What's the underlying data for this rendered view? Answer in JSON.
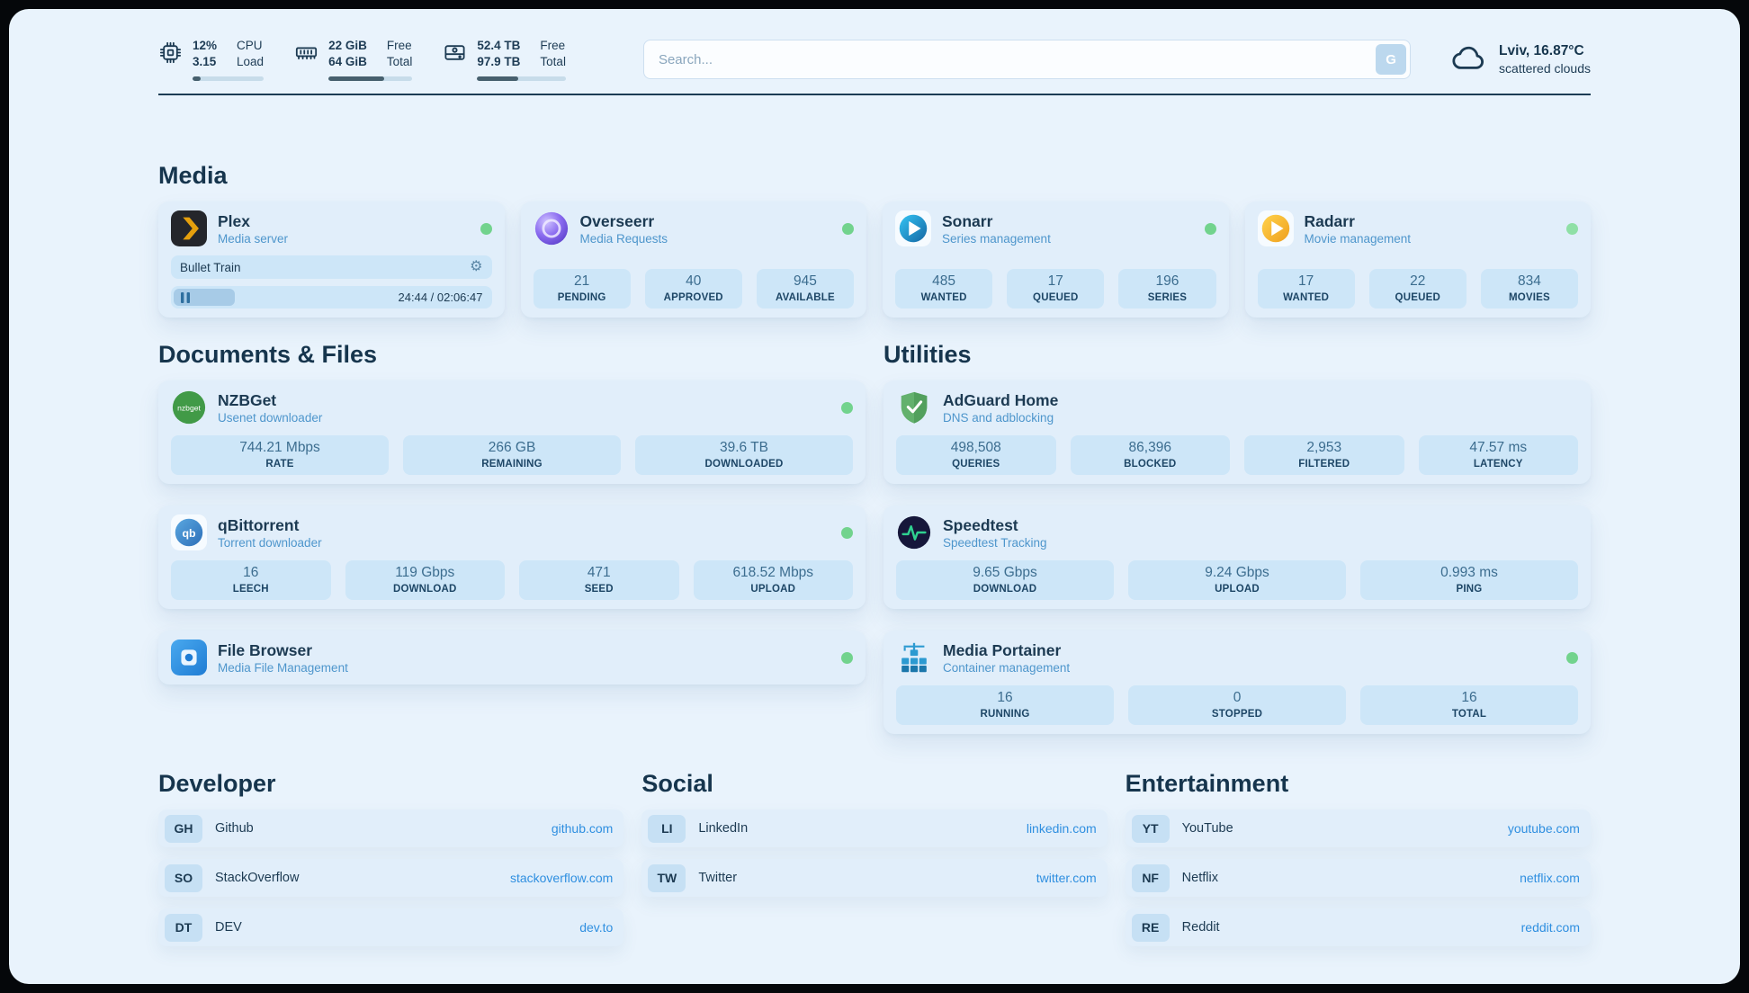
{
  "topbar": {
    "cpu": {
      "value1": "12%",
      "value2": "3.15",
      "label1": "CPU",
      "label2": "Load",
      "percent": 12
    },
    "ram": {
      "value1": "22 GiB",
      "value2": "64 GiB",
      "label1": "Free",
      "label2": "Total",
      "percent": 66
    },
    "disk": {
      "value1": "52.4 TB",
      "value2": "97.9 TB",
      "label1": "Free",
      "label2": "Total",
      "percent": 46
    },
    "search": {
      "placeholder": "Search...",
      "button_label": "G"
    },
    "weather": {
      "location": "Lviv, 16.87°C",
      "condition": "scattered clouds"
    }
  },
  "icons": {
    "gear": "⚙︎"
  },
  "media": {
    "title": "Media",
    "plex": {
      "name": "Plex",
      "subtitle": "Media server",
      "now_playing": "Bullet Train",
      "time": "24:44 / 02:06:47",
      "progress_percent": 19
    },
    "overseerr": {
      "name": "Overseerr",
      "subtitle": "Media Requests",
      "stats": [
        {
          "value": "21",
          "label": "PENDING"
        },
        {
          "value": "40",
          "label": "APPROVED"
        },
        {
          "value": "945",
          "label": "AVAILABLE"
        }
      ]
    },
    "sonarr": {
      "name": "Sonarr",
      "subtitle": "Series management",
      "stats": [
        {
          "value": "485",
          "label": "WANTED"
        },
        {
          "value": "17",
          "label": "QUEUED"
        },
        {
          "value": "196",
          "label": "SERIES"
        }
      ]
    },
    "radarr": {
      "name": "Radarr",
      "subtitle": "Movie management",
      "stats": [
        {
          "value": "17",
          "label": "WANTED"
        },
        {
          "value": "22",
          "label": "QUEUED"
        },
        {
          "value": "834",
          "label": "MOVIES"
        }
      ]
    }
  },
  "documents": {
    "title": "Documents & Files",
    "nzbget": {
      "name": "NZBGet",
      "subtitle": "Usenet downloader",
      "icon_label": "nzbget",
      "stats": [
        {
          "value": "744.21 Mbps",
          "label": "RATE"
        },
        {
          "value": "266 GB",
          "label": "REMAINING"
        },
        {
          "value": "39.6 TB",
          "label": "DOWNLOADED"
        }
      ]
    },
    "qbittorrent": {
      "name": "qBittorrent",
      "subtitle": "Torrent downloader",
      "icon_label": "qb",
      "stats": [
        {
          "value": "16",
          "label": "LEECH"
        },
        {
          "value": "119 Gbps",
          "label": "DOWNLOAD"
        },
        {
          "value": "471",
          "label": "SEED"
        },
        {
          "value": "618.52 Mbps",
          "label": "UPLOAD"
        }
      ]
    },
    "filebrowser": {
      "name": "File Browser",
      "subtitle": "Media File Management"
    }
  },
  "utilities": {
    "title": "Utilities",
    "adguard": {
      "name": "AdGuard Home",
      "subtitle": "DNS and adblocking",
      "stats": [
        {
          "value": "498,508",
          "label": "QUERIES"
        },
        {
          "value": "86,396",
          "label": "BLOCKED"
        },
        {
          "value": "2,953",
          "label": "FILTERED"
        },
        {
          "value": "47.57 ms",
          "label": "LATENCY"
        }
      ]
    },
    "speedtest": {
      "name": "Speedtest",
      "subtitle": "Speedtest Tracking",
      "stats": [
        {
          "value": "9.65 Gbps",
          "label": "DOWNLOAD"
        },
        {
          "value": "9.24 Gbps",
          "label": "UPLOAD"
        },
        {
          "value": "0.993 ms",
          "label": "PING"
        }
      ]
    },
    "portainer": {
      "name": "Media Portainer",
      "subtitle": "Container management",
      "stats": [
        {
          "value": "16",
          "label": "RUNNING"
        },
        {
          "value": "0",
          "label": "STOPPED"
        },
        {
          "value": "16",
          "label": "TOTAL"
        }
      ]
    }
  },
  "bookmarks": {
    "developer": {
      "title": "Developer",
      "items": [
        {
          "tag": "GH",
          "name": "Github",
          "url": "github.com"
        },
        {
          "tag": "SO",
          "name": "StackOverflow",
          "url": "stackoverflow.com"
        },
        {
          "tag": "DT",
          "name": "DEV",
          "url": "dev.to"
        }
      ]
    },
    "social": {
      "title": "Social",
      "items": [
        {
          "tag": "LI",
          "name": "LinkedIn",
          "url": "linkedin.com"
        },
        {
          "tag": "TW",
          "name": "Twitter",
          "url": "twitter.com"
        }
      ]
    },
    "entertainment": {
      "title": "Entertainment",
      "items": [
        {
          "tag": "YT",
          "name": "YouTube",
          "url": "youtube.com"
        },
        {
          "tag": "NF",
          "name": "Netflix",
          "url": "netflix.com"
        },
        {
          "tag": "RE",
          "name": "Reddit",
          "url": "reddit.com"
        }
      ]
    }
  },
  "colors": {
    "accent": "#2f8fe0",
    "status_green": "#72d38d"
  }
}
